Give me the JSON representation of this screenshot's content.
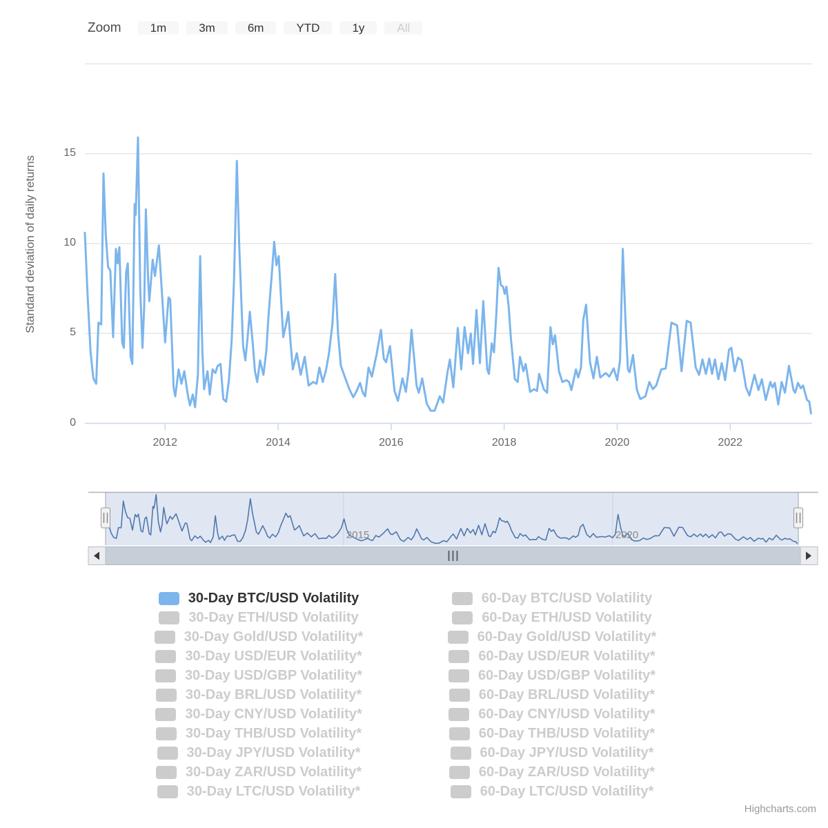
{
  "range_selector": {
    "zoom_label": "Zoom",
    "buttons": [
      {
        "label": "1m",
        "state": "enabled"
      },
      {
        "label": "3m",
        "state": "enabled"
      },
      {
        "label": "6m",
        "state": "enabled"
      },
      {
        "label": "YTD",
        "state": "enabled"
      },
      {
        "label": "1y",
        "state": "enabled"
      },
      {
        "label": "All",
        "state": "disabled"
      }
    ]
  },
  "chart_data": {
    "type": "line",
    "title": "",
    "xlabel": "",
    "ylabel": "Standard deviation of daily returns",
    "xlim": [
      2010.58,
      2023.45
    ],
    "ylim": [
      0,
      20
    ],
    "grid": true,
    "legend_position": "bottom",
    "yticks": [
      {
        "value": 0,
        "label": "0"
      },
      {
        "value": 5,
        "label": "5"
      },
      {
        "value": 10,
        "label": "10"
      },
      {
        "value": 15,
        "label": "15"
      }
    ],
    "xticks": [
      {
        "value": 2012,
        "label": "2012"
      },
      {
        "value": 2014,
        "label": "2014"
      },
      {
        "value": 2016,
        "label": "2016"
      },
      {
        "value": 2018,
        "label": "2018"
      },
      {
        "value": 2020,
        "label": "2020"
      },
      {
        "value": 2022,
        "label": "2022"
      }
    ],
    "series": [
      {
        "name": "30-Day BTC/USD Volatility",
        "color": "#7cb5ec",
        "points": [
          [
            2010.58,
            10.6
          ],
          [
            2010.63,
            7.0
          ],
          [
            2010.68,
            4.0
          ],
          [
            2010.73,
            2.5
          ],
          [
            2010.78,
            2.2
          ],
          [
            2010.82,
            5.6
          ],
          [
            2010.87,
            5.5
          ],
          [
            2010.91,
            13.9
          ],
          [
            2010.95,
            10.5
          ],
          [
            2010.99,
            8.7
          ],
          [
            2011.03,
            8.5
          ],
          [
            2011.08,
            4.8
          ],
          [
            2011.13,
            9.7
          ],
          [
            2011.16,
            8.9
          ],
          [
            2011.19,
            9.8
          ],
          [
            2011.24,
            4.5
          ],
          [
            2011.27,
            4.2
          ],
          [
            2011.31,
            8.4
          ],
          [
            2011.34,
            8.9
          ],
          [
            2011.39,
            3.7
          ],
          [
            2011.42,
            3.3
          ],
          [
            2011.46,
            12.2
          ],
          [
            2011.48,
            11.6
          ],
          [
            2011.52,
            15.9
          ],
          [
            2011.56,
            7.4
          ],
          [
            2011.6,
            4.2
          ],
          [
            2011.63,
            6.5
          ],
          [
            2011.66,
            11.9
          ],
          [
            2011.7,
            8.0
          ],
          [
            2011.72,
            6.8
          ],
          [
            2011.78,
            9.1
          ],
          [
            2011.82,
            8.2
          ],
          [
            2011.89,
            9.9
          ],
          [
            2012.0,
            4.5
          ],
          [
            2012.06,
            7.0
          ],
          [
            2012.09,
            6.9
          ],
          [
            2012.15,
            2.0
          ],
          [
            2012.18,
            1.5
          ],
          [
            2012.24,
            3.0
          ],
          [
            2012.29,
            2.2
          ],
          [
            2012.34,
            2.9
          ],
          [
            2012.4,
            1.6
          ],
          [
            2012.44,
            1.0
          ],
          [
            2012.49,
            1.6
          ],
          [
            2012.53,
            0.9
          ],
          [
            2012.58,
            2.7
          ],
          [
            2012.62,
            9.3
          ],
          [
            2012.66,
            4.0
          ],
          [
            2012.69,
            1.9
          ],
          [
            2012.75,
            2.9
          ],
          [
            2012.79,
            1.6
          ],
          [
            2012.84,
            3.0
          ],
          [
            2012.89,
            2.8
          ],
          [
            2012.93,
            3.2
          ],
          [
            2012.98,
            3.3
          ],
          [
            2013.03,
            1.35
          ],
          [
            2013.08,
            1.2
          ],
          [
            2013.13,
            2.4
          ],
          [
            2013.18,
            4.7
          ],
          [
            2013.22,
            8.0
          ],
          [
            2013.27,
            14.6
          ],
          [
            2013.31,
            10.0
          ],
          [
            2013.34,
            7.6
          ],
          [
            2013.38,
            4.3
          ],
          [
            2013.42,
            3.5
          ],
          [
            2013.46,
            4.8
          ],
          [
            2013.5,
            6.2
          ],
          [
            2013.55,
            4.5
          ],
          [
            2013.59,
            2.9
          ],
          [
            2013.63,
            2.3
          ],
          [
            2013.68,
            3.5
          ],
          [
            2013.74,
            2.7
          ],
          [
            2013.79,
            4.0
          ],
          [
            2013.83,
            6.0
          ],
          [
            2013.88,
            8.0
          ],
          [
            2013.93,
            10.1
          ],
          [
            2013.97,
            8.8
          ],
          [
            2014.01,
            9.3
          ],
          [
            2014.05,
            7.0
          ],
          [
            2014.09,
            4.8
          ],
          [
            2014.14,
            5.5
          ],
          [
            2014.18,
            6.2
          ],
          [
            2014.22,
            4.5
          ],
          [
            2014.26,
            3.0
          ],
          [
            2014.33,
            3.9
          ],
          [
            2014.4,
            2.7
          ],
          [
            2014.47,
            3.7
          ],
          [
            2014.54,
            2.1
          ],
          [
            2014.62,
            2.3
          ],
          [
            2014.68,
            2.2
          ],
          [
            2014.73,
            3.1
          ],
          [
            2014.79,
            2.3
          ],
          [
            2014.85,
            3.0
          ],
          [
            2014.9,
            3.9
          ],
          [
            2014.96,
            5.5
          ],
          [
            2015.01,
            8.3
          ],
          [
            2015.06,
            5.0
          ],
          [
            2015.11,
            3.2
          ],
          [
            2015.19,
            2.5
          ],
          [
            2015.26,
            1.9
          ],
          [
            2015.33,
            1.45
          ],
          [
            2015.39,
            1.8
          ],
          [
            2015.45,
            2.25
          ],
          [
            2015.5,
            1.7
          ],
          [
            2015.54,
            1.5
          ],
          [
            2015.6,
            3.1
          ],
          [
            2015.66,
            2.6
          ],
          [
            2015.74,
            3.8
          ],
          [
            2015.82,
            5.2
          ],
          [
            2015.87,
            3.6
          ],
          [
            2015.91,
            3.4
          ],
          [
            2015.98,
            4.3
          ],
          [
            2016.06,
            1.8
          ],
          [
            2016.12,
            1.25
          ],
          [
            2016.2,
            2.5
          ],
          [
            2016.26,
            1.75
          ],
          [
            2016.31,
            3.0
          ],
          [
            2016.36,
            5.2
          ],
          [
            2016.41,
            3.5
          ],
          [
            2016.45,
            2.1
          ],
          [
            2016.49,
            1.7
          ],
          [
            2016.55,
            2.5
          ],
          [
            2016.63,
            1.1
          ],
          [
            2016.7,
            0.7
          ],
          [
            2016.77,
            0.7
          ],
          [
            2016.86,
            1.5
          ],
          [
            2016.92,
            1.15
          ],
          [
            2017.0,
            2.9
          ],
          [
            2017.04,
            3.55
          ],
          [
            2017.1,
            2.0
          ],
          [
            2017.18,
            5.3
          ],
          [
            2017.24,
            3.0
          ],
          [
            2017.3,
            5.35
          ],
          [
            2017.36,
            3.9
          ],
          [
            2017.41,
            5.0
          ],
          [
            2017.45,
            3.3
          ],
          [
            2017.51,
            6.3
          ],
          [
            2017.57,
            3.35
          ],
          [
            2017.63,
            6.8
          ],
          [
            2017.7,
            3.0
          ],
          [
            2017.73,
            2.75
          ],
          [
            2017.78,
            4.45
          ],
          [
            2017.82,
            3.95
          ],
          [
            2017.86,
            6.0
          ],
          [
            2017.9,
            8.65
          ],
          [
            2017.94,
            7.7
          ],
          [
            2017.98,
            7.6
          ],
          [
            2018.01,
            7.2
          ],
          [
            2018.04,
            7.6
          ],
          [
            2018.08,
            6.5
          ],
          [
            2018.12,
            4.7
          ],
          [
            2018.19,
            2.45
          ],
          [
            2018.24,
            2.3
          ],
          [
            2018.28,
            3.7
          ],
          [
            2018.34,
            2.9
          ],
          [
            2018.38,
            3.3
          ],
          [
            2018.46,
            1.75
          ],
          [
            2018.53,
            1.9
          ],
          [
            2018.58,
            1.8
          ],
          [
            2018.62,
            2.75
          ],
          [
            2018.7,
            1.9
          ],
          [
            2018.76,
            1.7
          ],
          [
            2018.82,
            5.35
          ],
          [
            2018.86,
            4.4
          ],
          [
            2018.9,
            4.9
          ],
          [
            2018.97,
            2.9
          ],
          [
            2019.03,
            2.3
          ],
          [
            2019.1,
            2.4
          ],
          [
            2019.15,
            2.3
          ],
          [
            2019.19,
            1.85
          ],
          [
            2019.27,
            3.0
          ],
          [
            2019.31,
            2.55
          ],
          [
            2019.36,
            3.1
          ],
          [
            2019.4,
            5.75
          ],
          [
            2019.45,
            6.6
          ],
          [
            2019.52,
            3.4
          ],
          [
            2019.58,
            2.5
          ],
          [
            2019.64,
            3.7
          ],
          [
            2019.7,
            2.55
          ],
          [
            2019.8,
            2.8
          ],
          [
            2019.86,
            2.6
          ],
          [
            2019.94,
            3.05
          ],
          [
            2020.0,
            2.4
          ],
          [
            2020.05,
            3.5
          ],
          [
            2020.1,
            9.7
          ],
          [
            2020.15,
            5.5
          ],
          [
            2020.19,
            3.0
          ],
          [
            2020.22,
            2.85
          ],
          [
            2020.28,
            3.8
          ],
          [
            2020.35,
            1.85
          ],
          [
            2020.41,
            1.35
          ],
          [
            2020.5,
            1.5
          ],
          [
            2020.57,
            2.3
          ],
          [
            2020.63,
            1.9
          ],
          [
            2020.69,
            2.1
          ],
          [
            2020.78,
            3.0
          ],
          [
            2020.86,
            3.05
          ],
          [
            2020.96,
            5.6
          ],
          [
            2021.06,
            5.45
          ],
          [
            2021.14,
            2.9
          ],
          [
            2021.23,
            5.7
          ],
          [
            2021.3,
            5.6
          ],
          [
            2021.39,
            3.1
          ],
          [
            2021.45,
            2.7
          ],
          [
            2021.51,
            3.55
          ],
          [
            2021.57,
            2.75
          ],
          [
            2021.63,
            3.6
          ],
          [
            2021.68,
            2.75
          ],
          [
            2021.73,
            3.55
          ],
          [
            2021.79,
            2.45
          ],
          [
            2021.85,
            3.35
          ],
          [
            2021.91,
            2.4
          ],
          [
            2021.98,
            4.1
          ],
          [
            2022.02,
            4.2
          ],
          [
            2022.08,
            2.9
          ],
          [
            2022.14,
            3.65
          ],
          [
            2022.2,
            3.5
          ],
          [
            2022.28,
            2.0
          ],
          [
            2022.34,
            1.55
          ],
          [
            2022.43,
            2.7
          ],
          [
            2022.5,
            1.85
          ],
          [
            2022.56,
            2.45
          ],
          [
            2022.63,
            1.3
          ],
          [
            2022.71,
            2.3
          ],
          [
            2022.75,
            2.0
          ],
          [
            2022.79,
            2.25
          ],
          [
            2022.85,
            1.05
          ],
          [
            2022.91,
            2.3
          ],
          [
            2022.97,
            1.7
          ],
          [
            2023.04,
            3.2
          ],
          [
            2023.12,
            1.85
          ],
          [
            2023.15,
            1.7
          ],
          [
            2023.2,
            2.25
          ],
          [
            2023.25,
            1.95
          ],
          [
            2023.29,
            2.1
          ],
          [
            2023.36,
            1.3
          ],
          [
            2023.4,
            1.2
          ],
          [
            2023.43,
            0.55
          ]
        ]
      }
    ]
  },
  "navigator": {
    "labels": [
      {
        "text": "2015",
        "value": 2015
      },
      {
        "text": "2020",
        "value": 2020
      }
    ]
  },
  "legend": {
    "columns": [
      {
        "items": [
          {
            "label": "30-Day BTC/USD Volatility",
            "active": true
          },
          {
            "label": "30-Day ETH/USD Volatility",
            "active": false
          },
          {
            "label": "30-Day Gold/USD Volatility*",
            "active": false
          },
          {
            "label": "30-Day USD/EUR Volatility*",
            "active": false
          },
          {
            "label": "30-Day USD/GBP Volatility*",
            "active": false
          },
          {
            "label": "30-Day BRL/USD Volatility*",
            "active": false
          },
          {
            "label": "30-Day CNY/USD Volatility*",
            "active": false
          },
          {
            "label": "30-Day THB/USD Volatility*",
            "active": false
          },
          {
            "label": "30-Day JPY/USD Volatility*",
            "active": false
          },
          {
            "label": "30-Day ZAR/USD Volatility*",
            "active": false
          },
          {
            "label": "30-Day LTC/USD Volatility*",
            "active": false
          }
        ]
      },
      {
        "items": [
          {
            "label": "60-Day BTC/USD Volatility",
            "active": false
          },
          {
            "label": "60-Day ETH/USD Volatility",
            "active": false
          },
          {
            "label": "60-Day Gold/USD Volatility*",
            "active": false
          },
          {
            "label": "60-Day USD/EUR Volatility*",
            "active": false
          },
          {
            "label": "60-Day USD/GBP Volatility*",
            "active": false
          },
          {
            "label": "60-Day BRL/USD Volatility*",
            "active": false
          },
          {
            "label": "60-Day CNY/USD Volatility*",
            "active": false
          },
          {
            "label": "60-Day THB/USD Volatility*",
            "active": false
          },
          {
            "label": "60-Day JPY/USD Volatility*",
            "active": false
          },
          {
            "label": "60-Day ZAR/USD Volatility*",
            "active": false
          },
          {
            "label": "60-Day LTC/USD Volatility*",
            "active": false
          }
        ]
      }
    ]
  },
  "credits": {
    "text": "Highcharts.com"
  },
  "colors": {
    "series_blue": "#7cb5ec",
    "navigator_line": "#4f77ab",
    "navigator_mask": "rgba(102,133,194,0.2)",
    "inactive_gray": "#cccccc",
    "axis_label": "#666666",
    "grid": "#e6e6e6",
    "axis_line": "#ccd6eb"
  }
}
